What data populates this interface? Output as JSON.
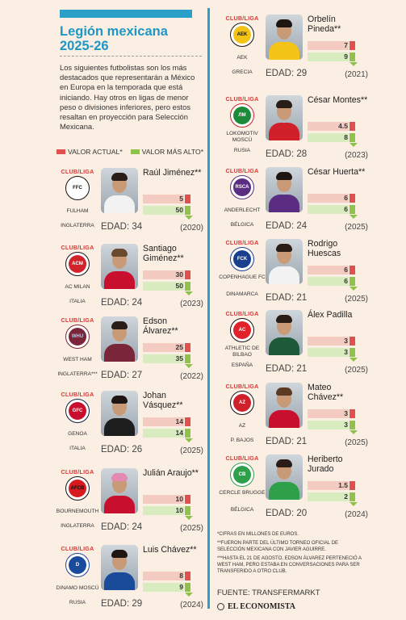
{
  "title": "Legión mexicana 2025-26",
  "intro": "Los siguientes futbolistas son los más destacados que representarán a México en Europa en la temporada que está iniciando. Hay otros en ligas de menor peso o divisiones inferiores, pero estos resaltan en proyección para Selección Mexicana.",
  "legend": {
    "current": "VALOR ACTUAL*",
    "max": "VALOR MÁS ALTO*",
    "current_color": "#e24f4f",
    "max_color": "#8ec24b"
  },
  "club_label": "CLUB/LIGA",
  "players": [
    {
      "name": "Raúl Jiménez**",
      "club": "FULHAM",
      "country": "INGLATERRA",
      "age": "EDAD: 34",
      "year": "(2020)",
      "current": "5",
      "max": "50",
      "badge": "fulham-badge"
    },
    {
      "name": "Santiago Giménez**",
      "club": "AC MILAN",
      "country": "ITALIA",
      "age": "EDAD: 24",
      "year": "(2023)",
      "current": "30",
      "max": "50",
      "badge": "milan-badge"
    },
    {
      "name": "Edson Álvarez**",
      "club": "WEST HAM",
      "country": "INGLATERRA***",
      "age": "EDAD: 27",
      "year": "(2022)",
      "current": "25",
      "max": "35",
      "badge": "westham-badge"
    },
    {
      "name": "Johan Vásquez**",
      "club": "GENOA",
      "country": "ITALIA",
      "age": "EDAD: 26",
      "year": "(2025)",
      "current": "14",
      "max": "14",
      "badge": "genoa-badge"
    },
    {
      "name": "Julián Araujo**",
      "club": "BOURNEMOUTH",
      "country": "INGLATERRA",
      "age": "EDAD: 24",
      "year": "(2025)",
      "current": "10",
      "max": "10",
      "badge": "bournemouth-badge"
    },
    {
      "name": "Luis Chávez**",
      "club": "DINAMO MOSCÚ",
      "country": "RUSIA",
      "age": "EDAD: 29",
      "year": "(2024)",
      "current": "8",
      "max": "9",
      "badge": "dinamo-badge"
    },
    {
      "name": "Orbelín Pineda**",
      "club": "AEK",
      "country": "GRECIA",
      "age": "EDAD: 29",
      "year": "(2021)",
      "current": "7",
      "max": "9",
      "badge": "aek-badge"
    },
    {
      "name": "César Montes**",
      "club": "LOKOMOTIV MOSCÚ",
      "country": "RUSIA",
      "age": "EDAD: 28",
      "year": "(2023)",
      "current": "4.5",
      "max": "8",
      "badge": "lokomotiv-badge"
    },
    {
      "name": "César Huerta**",
      "club": "ANDERLECHT",
      "country": "BÉLGICA",
      "age": "EDAD: 24",
      "year": "(2025)",
      "current": "6",
      "max": "6",
      "badge": "anderlecht-badge"
    },
    {
      "name": "Rodrigo Huescas",
      "club": "COPENHAGUE FC",
      "country": "DINAMARCA",
      "age": "EDAD: 21",
      "year": "(2025)",
      "current": "6",
      "max": "6",
      "badge": "copenhague-badge"
    },
    {
      "name": "Álex Padilla",
      "club": "ATHLETIC DE BILBAO",
      "country": "ESPAÑA",
      "age": "EDAD: 21",
      "year": "(2025)",
      "current": "3",
      "max": "3",
      "badge": "athletic-badge"
    },
    {
      "name": "Mateo Chávez**",
      "club": "AZ",
      "country": "P. BAJOS",
      "age": "EDAD: 21",
      "year": "(2025)",
      "current": "3",
      "max": "3",
      "badge": "az-badge"
    },
    {
      "name": "Heriberto Jurado",
      "club": "CERCLE BRUGGE",
      "country": "BÉLGICA",
      "age": "EDAD: 20",
      "year": "(2024)",
      "current": "1.5",
      "max": "2",
      "badge": "cercle-badge"
    }
  ],
  "notes": {
    "n1": "*Cifras en millones de euros.",
    "n2": "**Fueron parte del último torneo oficial de Selección Mexicana con Javier Aguirre.",
    "n3": "***Hasta el 21 de agosto, Edson Álvarez perteneció a West Ham, pero estaba en conversaciones para ser transferido a otro club."
  },
  "source": "FUENTE: TRANSFERMARKT",
  "brand": "EL ECONOMISTA"
}
